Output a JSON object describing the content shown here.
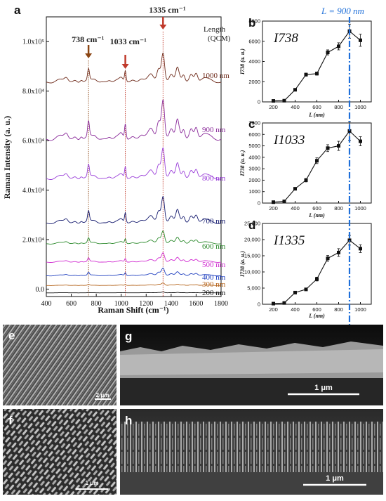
{
  "figure": {
    "panel_letters": [
      "a",
      "b",
      "c",
      "d",
      "e",
      "f",
      "g",
      "h"
    ],
    "background": "#ffffff"
  },
  "chart_data": [
    {
      "panel": "a",
      "type": "line",
      "xlabel": "Raman Shift (cm⁻¹)",
      "ylabel": "Raman Intensity (a. u.)",
      "xlim": [
        400,
        1800
      ],
      "ylim": [
        -3000,
        110000
      ],
      "x_ticks": [
        400,
        600,
        800,
        1000,
        1200,
        1400,
        1600,
        1800
      ],
      "y_ticks": [
        {
          "value": 0,
          "label": "0.0"
        },
        {
          "value": 20000,
          "label": "2.0x10⁴"
        },
        {
          "value": 40000,
          "label": "4.0x10⁴"
        },
        {
          "value": 60000,
          "label": "6.0x10⁴"
        },
        {
          "value": 80000,
          "label": "8.0x10⁴"
        },
        {
          "value": 100000,
          "label": "1.0x10⁵"
        }
      ],
      "legend_title": "Length\n(QCM)",
      "peaks": [
        {
          "shift": 738,
          "label": "738 cm⁻¹",
          "color": "#8b4513"
        },
        {
          "shift": 1033,
          "label": "1033 cm⁻¹",
          "color": "#c0392b"
        },
        {
          "shift": 1335,
          "label": "1335 cm⁻¹",
          "color": "#c0392b"
        }
      ],
      "series": [
        {
          "name": "200 nm",
          "baseline": -1500,
          "scale": 0.05,
          "color": "#111111"
        },
        {
          "name": "300 nm",
          "baseline": 1500,
          "scale": 0.15,
          "color": "#b5651d"
        },
        {
          "name": "400 nm",
          "baseline": 5500,
          "scale": 0.45,
          "color": "#1f3fbf"
        },
        {
          "name": "500 nm",
          "baseline": 11000,
          "scale": 0.55,
          "color": "#d02bd0"
        },
        {
          "name": "600 nm",
          "baseline": 18500,
          "scale": 0.75,
          "color": "#2e8b2e"
        },
        {
          "name": "700 nm",
          "baseline": 27000,
          "scale": 1.55,
          "color": "#141a6e"
        },
        {
          "name": "800 nm",
          "baseline": 45000,
          "scale": 1.8,
          "color": "#9b3fd9"
        },
        {
          "name": "900 nm",
          "baseline": 61000,
          "scale": 2.3,
          "color": "#8a2a9a"
        },
        {
          "name": "1000 nm",
          "baseline": 84000,
          "scale": 1.7,
          "color": "#6e2a1a"
        }
      ]
    },
    {
      "panel": "b",
      "type": "line",
      "annotation": "I738",
      "xlabel": "L (nm)",
      "ylabel": "I738 (a. u.)",
      "xlim": [
        100,
        1100
      ],
      "ylim": [
        0,
        8000
      ],
      "x_ticks": [
        200,
        400,
        600,
        800,
        1000
      ],
      "y_ticks": [
        0,
        2000,
        4000,
        6000,
        8000
      ],
      "x": [
        200,
        300,
        400,
        500,
        600,
        700,
        800,
        900,
        1000
      ],
      "y": [
        100,
        120,
        1200,
        2700,
        2800,
        4900,
        5500,
        7000,
        6100
      ],
      "err": [
        60,
        60,
        120,
        150,
        150,
        250,
        350,
        700,
        600
      ],
      "guide_line": {
        "x": 900,
        "label": "L = 900 nm",
        "color": "#1e6fd9"
      }
    },
    {
      "panel": "c",
      "type": "line",
      "annotation": "I1033",
      "xlabel": "L (nm)",
      "ylabel": "I738 (a. u.)",
      "xlim": [
        100,
        1100
      ],
      "ylim": [
        0,
        7000
      ],
      "x_ticks": [
        200,
        400,
        600,
        800,
        1000
      ],
      "y_ticks": [
        0,
        1000,
        2000,
        3000,
        4000,
        5000,
        6000,
        7000
      ],
      "x": [
        200,
        300,
        400,
        500,
        600,
        700,
        800,
        900,
        1000
      ],
      "y": [
        80,
        150,
        1250,
        2000,
        3700,
        4800,
        5000,
        6300,
        5400
      ],
      "err": [
        50,
        50,
        100,
        150,
        250,
        300,
        400,
        800,
        400
      ]
    },
    {
      "panel": "d",
      "type": "line",
      "annotation": "I1335",
      "xlabel": "L (nm)",
      "ylabel": "I738 (a. u.)",
      "xlim": [
        100,
        1100
      ],
      "ylim": [
        0,
        25000
      ],
      "x_ticks": [
        200,
        400,
        600,
        800,
        1000
      ],
      "y_ticks": [
        0,
        5000,
        10000,
        15000,
        20000,
        25000
      ],
      "y_tick_labels": [
        "0",
        "5,000",
        "10,000",
        "15,000",
        "20,000",
        "25,000"
      ],
      "x": [
        200,
        300,
        400,
        500,
        600,
        700,
        800,
        900,
        1000
      ],
      "y": [
        200,
        400,
        3600,
        4600,
        7800,
        14200,
        16000,
        19800,
        17200
      ],
      "err": [
        200,
        200,
        300,
        400,
        600,
        900,
        1200,
        1500,
        1200
      ]
    }
  ],
  "sem_images": [
    {
      "panel": "e",
      "scale_label": "2 μm"
    },
    {
      "panel": "f",
      "scale_label": "1 μm"
    },
    {
      "panel": "g",
      "scale_label": "1 μm"
    },
    {
      "panel": "h",
      "scale_label": "1 μm"
    }
  ]
}
